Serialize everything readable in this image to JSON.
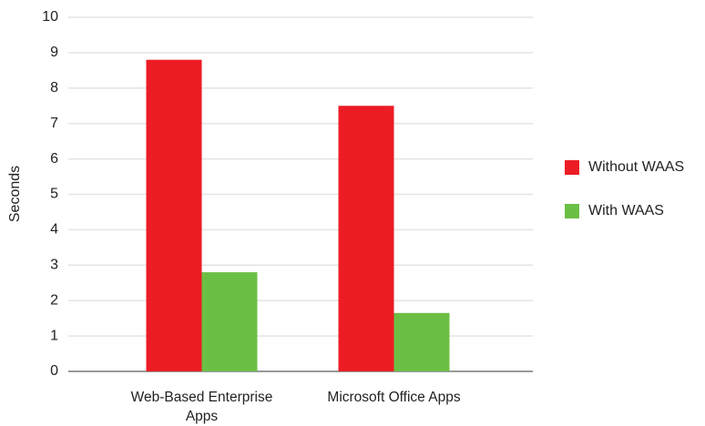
{
  "chart_data": {
    "type": "bar",
    "ylabel": "Seconds",
    "categories": [
      "Web-Based Enterprise Apps",
      "Microsoft Office Apps"
    ],
    "series": [
      {
        "name": "Without WAAS",
        "color": "#ec1c24",
        "values": [
          8.8,
          7.5
        ]
      },
      {
        "name": "With WAAS",
        "color": "#6cbf45",
        "values": [
          2.8,
          1.65
        ]
      }
    ],
    "ylim": [
      0,
      10
    ],
    "yticks": [
      0,
      1,
      2,
      3,
      4,
      5,
      6,
      7,
      8,
      9,
      10
    ],
    "grid": true,
    "legend": "right"
  }
}
